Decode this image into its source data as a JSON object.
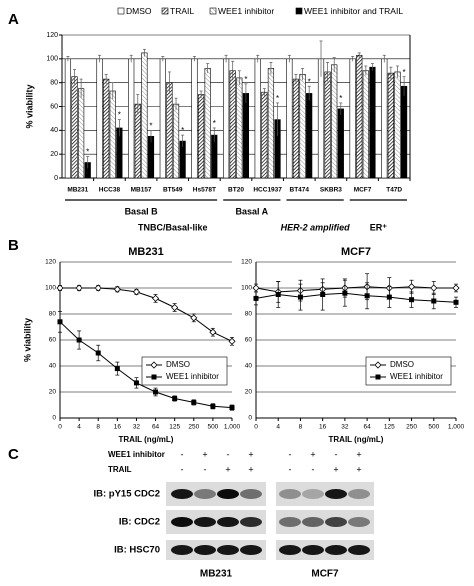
{
  "panel_labels": [
    "A",
    "B",
    "C"
  ],
  "chart_data": [
    {
      "type": "bar",
      "ylabel": "% viability",
      "categories": [
        "MB231",
        "HCC38",
        "MB157",
        "BT549",
        "Hs578T",
        "BT20",
        "HCC1937",
        "BT474",
        "SKBR3",
        "MCF7",
        "T47D"
      ],
      "series": [
        {
          "name": "DMSO",
          "color": "#ffffff",
          "pattern": "none",
          "values": [
            100,
            100,
            100,
            100,
            100,
            100,
            100,
            100,
            100,
            100,
            100
          ],
          "errors": [
            2,
            3,
            3,
            2,
            2,
            3,
            3,
            3,
            15,
            2,
            3
          ]
        },
        {
          "name": "TRAIL",
          "color": "#555555",
          "pattern": "hatch-dense",
          "values": [
            85,
            83,
            62,
            80,
            70,
            90,
            72,
            83,
            89,
            103,
            88
          ],
          "errors": [
            6,
            4,
            8,
            9,
            3,
            8,
            3,
            4,
            8,
            2,
            5
          ]
        },
        {
          "name": "WEE1 inhibitor",
          "color": "#999999",
          "pattern": "hatch-light",
          "values": [
            75,
            73,
            105,
            62,
            92,
            84,
            92,
            87,
            95,
            90,
            89
          ],
          "errors": [
            8,
            7,
            3,
            5,
            4,
            6,
            5,
            5,
            6,
            4,
            5
          ]
        },
        {
          "name": "WEE1 inhibitor and TRAIL",
          "color": "#000000",
          "pattern": "none",
          "values": [
            13,
            42,
            35,
            31,
            36,
            71,
            49,
            71,
            58,
            93,
            77
          ],
          "errors": [
            5,
            7,
            5,
            5,
            6,
            8,
            14,
            6,
            5,
            3,
            8
          ],
          "significance": [
            "*",
            "*",
            "*",
            "*",
            "*",
            "*",
            "*",
            "*",
            "*",
            null,
            "*"
          ]
        }
      ],
      "group_labels": [
        "Basal B",
        "Basal A",
        "TNBC/Basal-like",
        "HER-2 amplified",
        "ER⁺"
      ],
      "ylim": [
        0,
        120
      ],
      "yticks": [
        0,
        20,
        40,
        60,
        80,
        100,
        120
      ],
      "grid": true,
      "legend": "top"
    },
    {
      "type": "line",
      "title": "MB231",
      "xlabel": "TRAIL (ng/mL)",
      "ylabel": "% viability",
      "categories": [
        "0",
        "4",
        "8",
        "16",
        "32",
        "64",
        "125",
        "250",
        "500",
        "1,000"
      ],
      "series": [
        {
          "name": "DMSO",
          "color": "#000000",
          "marker": "diamond",
          "values": [
            100,
            100,
            100,
            99,
            97,
            92,
            85,
            77,
            66,
            59
          ],
          "errors": [
            2,
            2,
            2,
            2,
            2,
            3,
            3,
            3,
            3,
            3
          ]
        },
        {
          "name": "WEE1 inhibitor",
          "color": "#000000",
          "marker": "square",
          "values": [
            74,
            60,
            50,
            38,
            27,
            20,
            15,
            12,
            9,
            8
          ],
          "errors": [
            8,
            7,
            6,
            5,
            4,
            3,
            2,
            2,
            2,
            2
          ]
        }
      ],
      "ylim": [
        0,
        120
      ],
      "yticks": [
        0,
        20,
        40,
        60,
        80,
        100,
        120
      ],
      "grid": true,
      "legend": "lower right"
    },
    {
      "type": "line",
      "title": "MCF7",
      "xlabel": "TRAIL (ng/mL)",
      "categories": [
        "0",
        "4",
        "8",
        "16",
        "32",
        "64",
        "125",
        "250",
        "500",
        "1,000"
      ],
      "series": [
        {
          "name": "DMSO",
          "color": "#000000",
          "marker": "diamond",
          "values": [
            100,
            97,
            98,
            99,
            100,
            101,
            100,
            101,
            100,
            100
          ],
          "errors": [
            3,
            8,
            8,
            5,
            7,
            10,
            8,
            5,
            5,
            3
          ]
        },
        {
          "name": "WEE1 inhibitor",
          "color": "#000000",
          "marker": "square",
          "values": [
            92,
            95,
            93,
            95,
            96,
            94,
            93,
            91,
            90,
            89
          ],
          "errors": [
            5,
            10,
            10,
            12,
            10,
            10,
            8,
            6,
            6,
            4
          ]
        }
      ],
      "ylim": [
        0,
        120
      ],
      "yticks": [
        0,
        20,
        40,
        60,
        80,
        100,
        120
      ],
      "grid": true,
      "legend": "lower right"
    }
  ],
  "western_blot": {
    "treatment_labels": [
      "WEE1 inhibitor",
      "TRAIL"
    ],
    "treatments": [
      [
        "-",
        "+",
        "-",
        "+",
        "-",
        "+",
        "-",
        "+"
      ],
      [
        "-",
        "-",
        "+",
        "+",
        "-",
        "-",
        "+",
        "+"
      ]
    ],
    "antibodies": [
      "IB: pY15 CDC2",
      "IB: CDC2",
      "IB: HSC70"
    ],
    "cell_lines": [
      "MB231",
      "MCF7"
    ]
  }
}
